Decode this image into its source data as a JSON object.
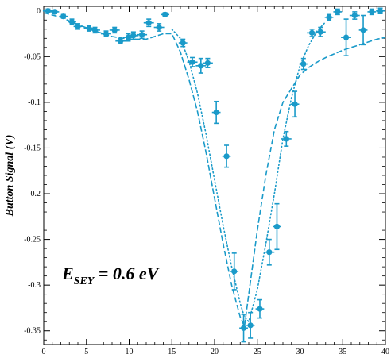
{
  "chart_data": {
    "type": "scatter",
    "title": "",
    "xlabel": "",
    "ylabel": "Button Signal (V)",
    "xlim": [
      0,
      40
    ],
    "ylim": [
      -0.365,
      0.005
    ],
    "xticks_major": [
      0,
      5,
      10,
      15,
      20,
      25,
      30,
      35,
      40
    ],
    "xticks_labels": [
      "0",
      "5",
      "10",
      "15",
      "20",
      "25",
      "30",
      "35",
      "40"
    ],
    "yticks_major": [
      0,
      -0.05,
      -0.1,
      -0.15,
      -0.2,
      -0.25,
      -0.3,
      -0.35
    ],
    "yticks_labels": [
      "0",
      "-0.05",
      "-0.1",
      "-0.15",
      "-0.2",
      "-0.25",
      "-0.3",
      "-0.35"
    ],
    "grid": false,
    "color": "#1a9ac9",
    "annotation": {
      "main": "E",
      "sub": "SEY",
      "rest": " = 0.6 eV"
    },
    "series": [
      {
        "kind": "measured",
        "points": [
          {
            "x": 0.5,
            "y": 0.0,
            "xerr": 0.6,
            "yerr": 0.002
          },
          {
            "x": 1.3,
            "y": -0.001,
            "xerr": 0.5,
            "yerr": 0.002
          },
          {
            "x": 2.3,
            "y": -0.006,
            "xerr": 0.5,
            "yerr": 0.002
          },
          {
            "x": 3.3,
            "y": -0.012,
            "xerr": 0.5,
            "yerr": 0.003
          },
          {
            "x": 4.0,
            "y": -0.017,
            "xerr": 0.5,
            "yerr": 0.003
          },
          {
            "x": 5.3,
            "y": -0.019,
            "xerr": 0.6,
            "yerr": 0.003
          },
          {
            "x": 6.0,
            "y": -0.021,
            "xerr": 0.6,
            "yerr": 0.003
          },
          {
            "x": 7.3,
            "y": -0.025,
            "xerr": 0.6,
            "yerr": 0.003
          },
          {
            "x": 8.3,
            "y": -0.021,
            "xerr": 0.6,
            "yerr": 0.003
          },
          {
            "x": 9.0,
            "y": -0.033,
            "xerr": 0.6,
            "yerr": 0.003
          },
          {
            "x": 9.9,
            "y": -0.029,
            "xerr": 0.6,
            "yerr": 0.004
          },
          {
            "x": 10.5,
            "y": -0.027,
            "xerr": 0.6,
            "yerr": 0.004
          },
          {
            "x": 11.5,
            "y": -0.026,
            "xerr": 0.6,
            "yerr": 0.004
          },
          {
            "x": 12.3,
            "y": -0.013,
            "xerr": 0.6,
            "yerr": 0.004
          },
          {
            "x": 13.5,
            "y": -0.018,
            "xerr": 0.6,
            "yerr": 0.004
          },
          {
            "x": 14.2,
            "y": -0.004,
            "xerr": 0.5,
            "yerr": 0.002
          },
          {
            "x": 16.3,
            "y": -0.035,
            "xerr": 0.5,
            "yerr": 0.004
          },
          {
            "x": 17.4,
            "y": -0.056,
            "xerr": 0.6,
            "yerr": 0.005
          },
          {
            "x": 18.4,
            "y": -0.06,
            "xerr": 0.6,
            "yerr": 0.008
          },
          {
            "x": 19.2,
            "y": -0.057,
            "xerr": 0.6,
            "yerr": 0.005
          },
          {
            "x": 20.2,
            "y": -0.111,
            "xerr": 0.5,
            "yerr": 0.012
          },
          {
            "x": 21.4,
            "y": -0.159,
            "xerr": 0.5,
            "yerr": 0.012
          },
          {
            "x": 22.3,
            "y": -0.285,
            "xerr": 0.5,
            "yerr": 0.02
          },
          {
            "x": 23.4,
            "y": -0.347,
            "xerr": 0.5,
            "yerr": 0.015
          },
          {
            "x": 24.2,
            "y": -0.344,
            "xerr": 0.5,
            "yerr": 0.014
          },
          {
            "x": 25.3,
            "y": -0.326,
            "xerr": 0.5,
            "yerr": 0.01
          },
          {
            "x": 26.4,
            "y": -0.264,
            "xerr": 0.6,
            "yerr": 0.014
          },
          {
            "x": 27.3,
            "y": -0.236,
            "xerr": 0.5,
            "yerr": 0.025
          },
          {
            "x": 28.4,
            "y": -0.14,
            "xerr": 0.6,
            "yerr": 0.008
          },
          {
            "x": 29.4,
            "y": -0.102,
            "xerr": 0.5,
            "yerr": 0.014
          },
          {
            "x": 30.4,
            "y": -0.058,
            "xerr": 0.5,
            "yerr": 0.006
          },
          {
            "x": 31.4,
            "y": -0.024,
            "xerr": 0.6,
            "yerr": 0.004
          },
          {
            "x": 32.4,
            "y": -0.023,
            "xerr": 0.6,
            "yerr": 0.005
          },
          {
            "x": 33.4,
            "y": -0.007,
            "xerr": 0.5,
            "yerr": 0.003
          },
          {
            "x": 34.4,
            "y": -0.001,
            "xerr": 0.5,
            "yerr": 0.003
          },
          {
            "x": 35.4,
            "y": -0.029,
            "xerr": 0.6,
            "yerr": 0.02
          },
          {
            "x": 36.4,
            "y": -0.005,
            "xerr": 0.6,
            "yerr": 0.004
          },
          {
            "x": 37.4,
            "y": -0.021,
            "xerr": 0.5,
            "yerr": 0.016
          },
          {
            "x": 38.4,
            "y": -0.001,
            "xerr": 0.5,
            "yerr": 0.003
          },
          {
            "x": 39.4,
            "y": 0.0,
            "xerr": 0.5,
            "yerr": 0.003
          }
        ]
      },
      {
        "kind": "simulated",
        "style": "dashed-steps",
        "x": [
          0,
          2,
          4,
          6,
          8,
          10,
          12,
          14,
          15,
          16,
          17,
          18,
          19,
          20,
          21,
          22,
          23,
          23.5,
          24,
          25,
          26,
          27,
          28,
          29,
          30,
          31,
          32,
          33,
          34,
          35,
          36,
          37,
          38,
          39,
          40
        ],
        "y": [
          -0.002,
          -0.007,
          -0.015,
          -0.022,
          -0.028,
          -0.031,
          -0.031,
          -0.025,
          -0.025,
          -0.045,
          -0.075,
          -0.11,
          -0.155,
          -0.205,
          -0.255,
          -0.3,
          -0.335,
          -0.345,
          -0.31,
          -0.24,
          -0.18,
          -0.13,
          -0.1,
          -0.085,
          -0.07,
          -0.062,
          -0.056,
          -0.051,
          -0.047,
          -0.043,
          -0.04,
          -0.037,
          -0.034,
          -0.031,
          -0.029
        ]
      },
      {
        "kind": "simulated",
        "style": "dotted",
        "x": [
          15,
          16,
          17,
          18,
          19,
          20,
          21,
          22,
          23,
          23.5,
          24,
          25,
          26,
          27,
          28,
          29,
          30,
          31,
          32,
          33
        ],
        "y": [
          -0.02,
          -0.03,
          -0.055,
          -0.09,
          -0.135,
          -0.185,
          -0.235,
          -0.28,
          -0.32,
          -0.335,
          -0.34,
          -0.305,
          -0.255,
          -0.2,
          -0.14,
          -0.095,
          -0.06,
          -0.038,
          -0.022,
          -0.012
        ]
      }
    ]
  }
}
